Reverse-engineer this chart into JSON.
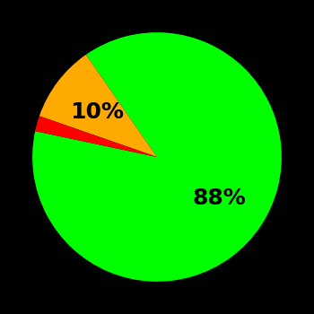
{
  "slices": [
    88,
    10,
    2
  ],
  "colors": [
    "#00ff00",
    "#ffaa00",
    "#ff0000"
  ],
  "background_color": "#000000",
  "startangle": 168,
  "counterclock": true,
  "font_size": 18,
  "font_weight": "bold",
  "label_dist": 0.6,
  "labels": [
    {
      "text": "88%",
      "pct": 88,
      "color": "#000000"
    },
    {
      "text": "10%",
      "pct": 10,
      "color": "#000000"
    },
    {
      "text": "",
      "pct": 2,
      "color": "#000000"
    }
  ]
}
